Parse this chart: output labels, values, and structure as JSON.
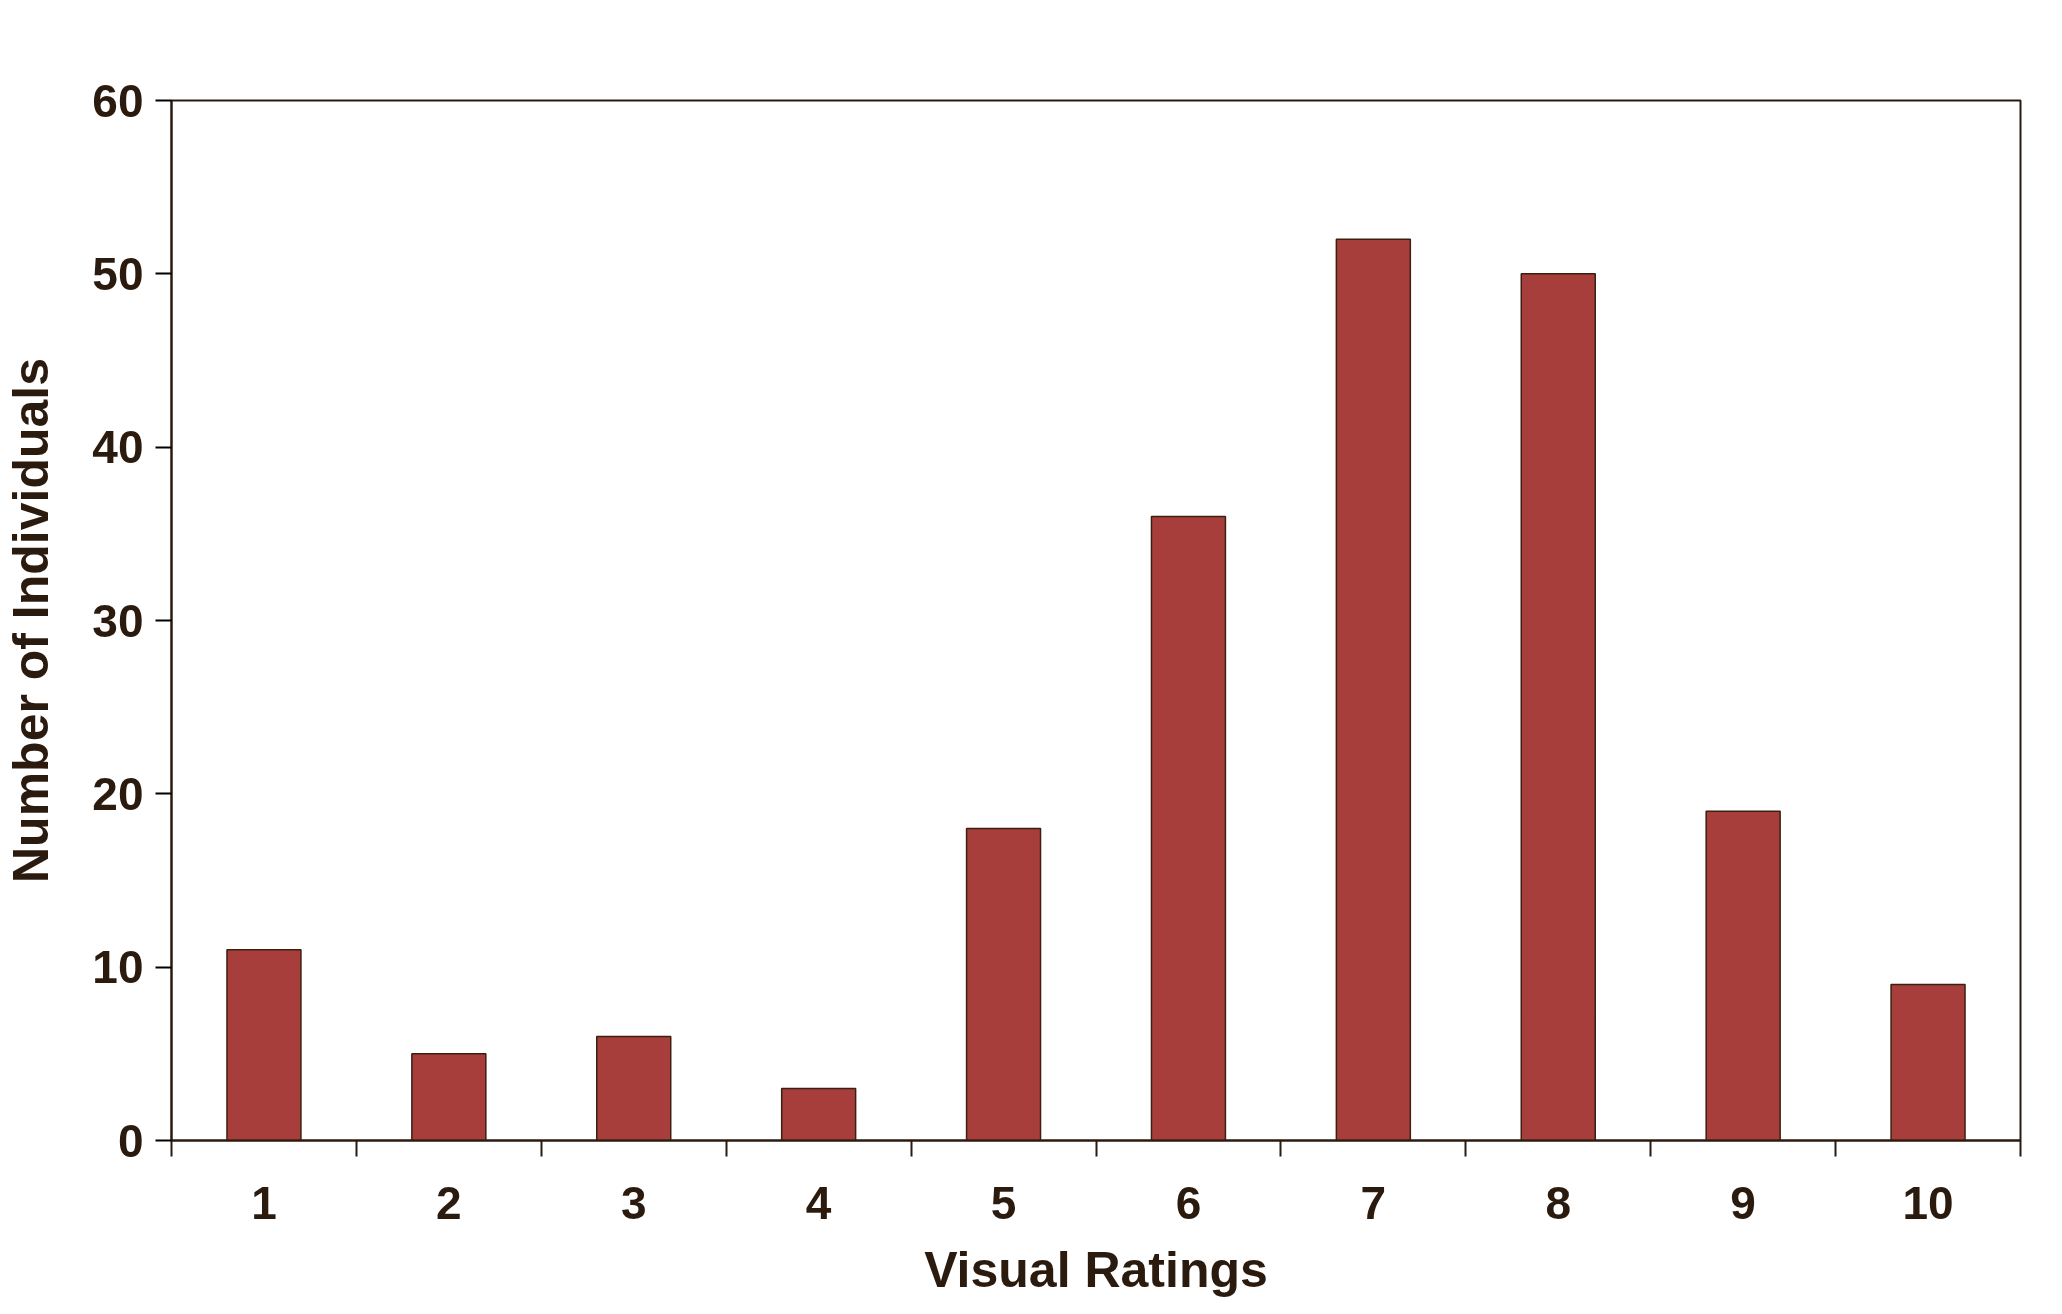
{
  "chart_data": {
    "type": "bar",
    "xlabel": "Visual Ratings",
    "ylabel": "Number of Individuals",
    "categories": [
      "1",
      "2",
      "3",
      "4",
      "5",
      "6",
      "7",
      "8",
      "9",
      "10"
    ],
    "values": [
      11,
      5,
      6,
      3,
      18,
      36,
      52,
      50,
      19,
      9
    ],
    "color": "#a83e3c",
    "ylim": [
      0,
      60
    ],
    "yticks": [
      0,
      10,
      20,
      30,
      40,
      50,
      60
    ],
    "grid": false
  }
}
